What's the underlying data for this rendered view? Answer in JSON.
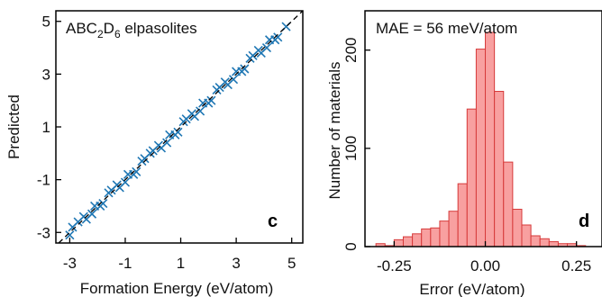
{
  "chart_data": [
    {
      "type": "scatter",
      "panel_label": "c",
      "annotation": {
        "main": "ABC",
        "sub1": "2",
        "mid": "D",
        "sub2": "6",
        "tail": " elpasolites"
      },
      "xlabel": "Formation Energy (eV/atom)",
      "ylabel": "Predicted",
      "xlim": [
        -3.5,
        5.4
      ],
      "ylim": [
        -3.4,
        5.4
      ],
      "xticks": [
        -3,
        -1,
        1,
        3,
        5
      ],
      "xtick_labels": [
        "-3",
        "-1",
        "1",
        "3",
        "5"
      ],
      "yticks": [
        -3,
        -1,
        1,
        3,
        5
      ],
      "ytick_labels": [
        "-3",
        "-1",
        "1",
        "3",
        "5"
      ],
      "marker": "x",
      "marker_color": "#1f77b4",
      "parity_line": true,
      "grid": false,
      "series": [
        {
          "x": [
            -3.0,
            -2.7,
            -2.4,
            -2.1,
            -1.8,
            -1.5,
            -1.2,
            -0.9,
            -0.6,
            -0.3,
            0.0,
            0.3,
            0.6,
            0.9,
            1.2,
            1.5,
            1.8,
            2.1,
            2.4,
            2.7,
            3.0,
            3.3,
            3.6,
            3.9,
            4.2,
            4.5,
            4.8,
            -2.9,
            -2.2,
            -1.6,
            -1.0,
            -0.4,
            0.2,
            0.8,
            1.4,
            2.0,
            2.6,
            3.2,
            3.8,
            4.4,
            -2.5,
            -1.9,
            -1.3,
            -0.7,
            -0.1,
            0.5,
            1.1,
            1.7,
            2.3,
            2.9,
            3.5,
            4.1
          ],
          "y": [
            -3.1,
            -2.6,
            -2.5,
            -2.0,
            -1.9,
            -1.4,
            -1.3,
            -0.8,
            -0.7,
            -0.2,
            0.1,
            0.2,
            0.7,
            0.8,
            1.3,
            1.4,
            1.9,
            2.0,
            2.5,
            2.6,
            3.1,
            3.2,
            3.7,
            3.8,
            4.3,
            4.4,
            4.8,
            -2.8,
            -2.3,
            -1.5,
            -1.1,
            -0.3,
            0.3,
            0.7,
            1.5,
            1.9,
            2.7,
            3.1,
            3.9,
            4.3,
            -2.4,
            -2.0,
            -1.2,
            -0.8,
            0.0,
            0.4,
            1.2,
            1.6,
            2.4,
            2.8,
            3.6,
            4.0
          ]
        }
      ]
    },
    {
      "type": "bar",
      "subtype": "histogram",
      "panel_label": "d",
      "annotation": "MAE = 56 meV/atom",
      "xlabel": "Error (eV/atom)",
      "ylabel": "Number of materials",
      "xlim": [
        -0.33,
        0.32
      ],
      "ylim": [
        0,
        240
      ],
      "xticks": [
        -0.25,
        0.0,
        0.25
      ],
      "xtick_labels": [
        "-0.25",
        "0.00",
        "0.25"
      ],
      "yticks": [
        0,
        100,
        200
      ],
      "ytick_labels": [
        "0",
        "100",
        "200"
      ],
      "bin_width": 0.025,
      "bin_edges_start": -0.3,
      "values": [
        3,
        1,
        7,
        10,
        13,
        18,
        19,
        26,
        36,
        64,
        140,
        201,
        218,
        158,
        86,
        38,
        22,
        11,
        8,
        5,
        3,
        3,
        1
      ],
      "bar_fill": "#f8a0a0",
      "bar_edge": "#d63a3a",
      "grid": false
    }
  ]
}
